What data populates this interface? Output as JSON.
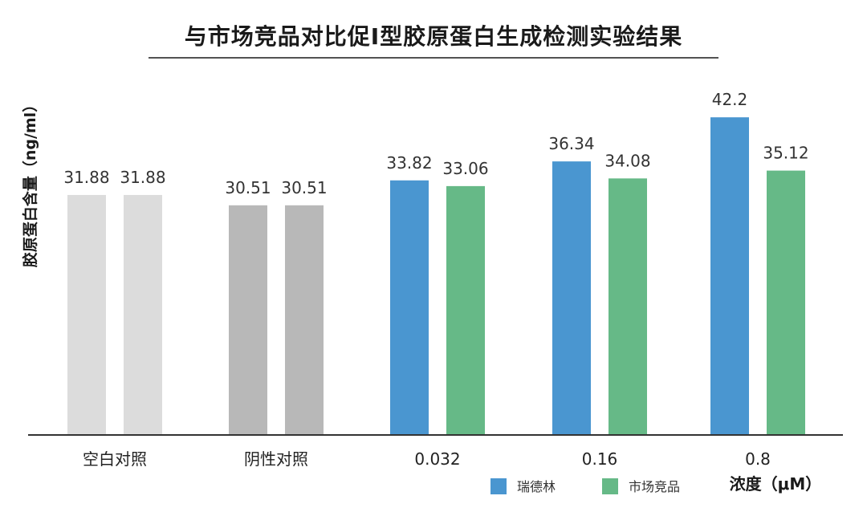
{
  "chart_data": {
    "type": "bar",
    "title": "与市场竞品对比促I型胶原蛋白生成检测实验结果",
    "ylabel": "胶原蛋白含量（ng/ml）",
    "xlabel": "浓度（μM）",
    "ylim": [
      0,
      48
    ],
    "grid": false,
    "legend_position": "bottom-right",
    "categories": [
      "空白对照",
      "阴性对照",
      "0.032",
      "0.16",
      "0.8"
    ],
    "series": [
      {
        "name": "瑞德林",
        "values": [
          31.88,
          30.51,
          33.82,
          36.34,
          42.2
        ]
      },
      {
        "name": "市场竞品",
        "values": [
          31.88,
          30.51,
          33.06,
          34.08,
          35.12
        ]
      }
    ],
    "bar_colors": [
      [
        "#dcdcdc",
        "#dcdcdc"
      ],
      [
        "#b8b8b8",
        "#b8b8b8"
      ],
      [
        "#4a96d0",
        "#66b987"
      ],
      [
        "#4a96d0",
        "#66b987"
      ],
      [
        "#4a96d0",
        "#66b987"
      ]
    ],
    "legend": [
      {
        "label": "瑞德林",
        "color": "#4a96d0"
      },
      {
        "label": "市场竞品",
        "color": "#66b987"
      }
    ]
  }
}
